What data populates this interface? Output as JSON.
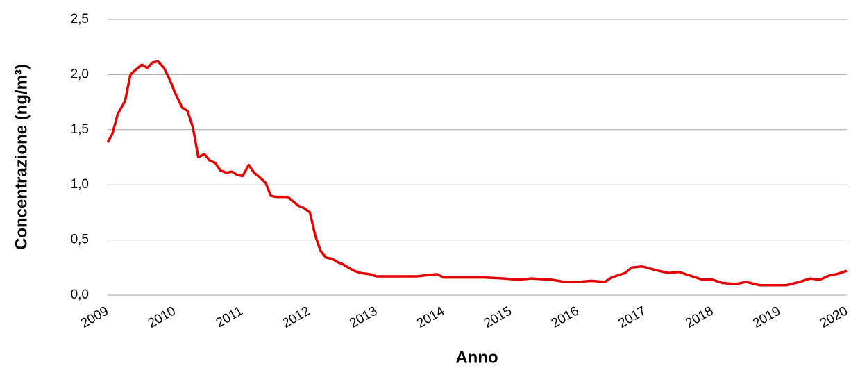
{
  "chart_data": {
    "type": "line",
    "x_label": "Anno",
    "y_label": "Concentrazione (ng/m³)",
    "xlim": [
      2009,
      2020
    ],
    "xticks": [
      2009,
      2010,
      2011,
      2012,
      2013,
      2014,
      2015,
      2016,
      2017,
      2018,
      2019,
      2020
    ],
    "ylim": [
      0,
      2.5
    ],
    "yticks": [
      {
        "value": 0,
        "label": "0,0"
      },
      {
        "value": 0.5,
        "label": "0,5"
      },
      {
        "value": 1,
        "label": "1,0"
      },
      {
        "value": 1.5,
        "label": "1,5"
      },
      {
        "value": 2,
        "label": "2,0"
      },
      {
        "value": 2.5,
        "label": "2,5"
      }
    ],
    "grid": true,
    "x": [
      2009.0,
      2009.07,
      2009.15,
      2009.26,
      2009.34,
      2009.43,
      2009.51,
      2009.59,
      2009.67,
      2009.75,
      2009.84,
      2009.92,
      2010.0,
      2010.11,
      2010.19,
      2010.27,
      2010.35,
      2010.44,
      2010.52,
      2010.6,
      2010.68,
      2010.77,
      2010.85,
      2010.93,
      2011.01,
      2011.1,
      2011.18,
      2011.26,
      2011.35,
      2011.43,
      2011.51,
      2011.59,
      2011.68,
      2011.76,
      2011.84,
      2011.92,
      2012.01,
      2012.09,
      2012.17,
      2012.25,
      2012.34,
      2012.42,
      2012.5,
      2012.58,
      2012.67,
      2012.77,
      2012.9,
      2013.0,
      2013.3,
      2013.6,
      2013.9,
      2014.0,
      2014.3,
      2014.6,
      2014.9,
      2015.1,
      2015.3,
      2015.6,
      2015.8,
      2016.0,
      2016.2,
      2016.4,
      2016.5,
      2016.7,
      2016.8,
      2016.95,
      2017.2,
      2017.35,
      2017.5,
      2017.7,
      2017.85,
      2018.0,
      2018.15,
      2018.35,
      2018.5,
      2018.7,
      2019.0,
      2019.1,
      2019.3,
      2019.45,
      2019.6,
      2019.75,
      2019.85,
      2020.0
    ],
    "series": [
      {
        "color": "#e50000",
        "values": [
          1.385,
          1.46,
          1.64,
          1.76,
          2.0,
          2.05,
          2.09,
          2.06,
          2.11,
          2.12,
          2.06,
          1.96,
          1.84,
          1.7,
          1.67,
          1.52,
          1.25,
          1.28,
          1.22,
          1.2,
          1.13,
          1.11,
          1.12,
          1.09,
          1.08,
          1.18,
          1.11,
          1.07,
          1.02,
          0.9,
          0.89,
          0.89,
          0.89,
          0.85,
          0.81,
          0.79,
          0.75,
          0.54,
          0.4,
          0.34,
          0.33,
          0.3,
          0.28,
          0.25,
          0.22,
          0.2,
          0.19,
          0.17,
          0.17,
          0.17,
          0.19,
          0.16,
          0.16,
          0.16,
          0.15,
          0.14,
          0.15,
          0.14,
          0.12,
          0.12,
          0.13,
          0.12,
          0.16,
          0.2,
          0.25,
          0.26,
          0.22,
          0.2,
          0.21,
          0.17,
          0.14,
          0.14,
          0.11,
          0.1,
          0.12,
          0.09,
          0.09,
          0.09,
          0.12,
          0.15,
          0.14,
          0.18,
          0.19,
          0.22
        ]
      }
    ]
  }
}
